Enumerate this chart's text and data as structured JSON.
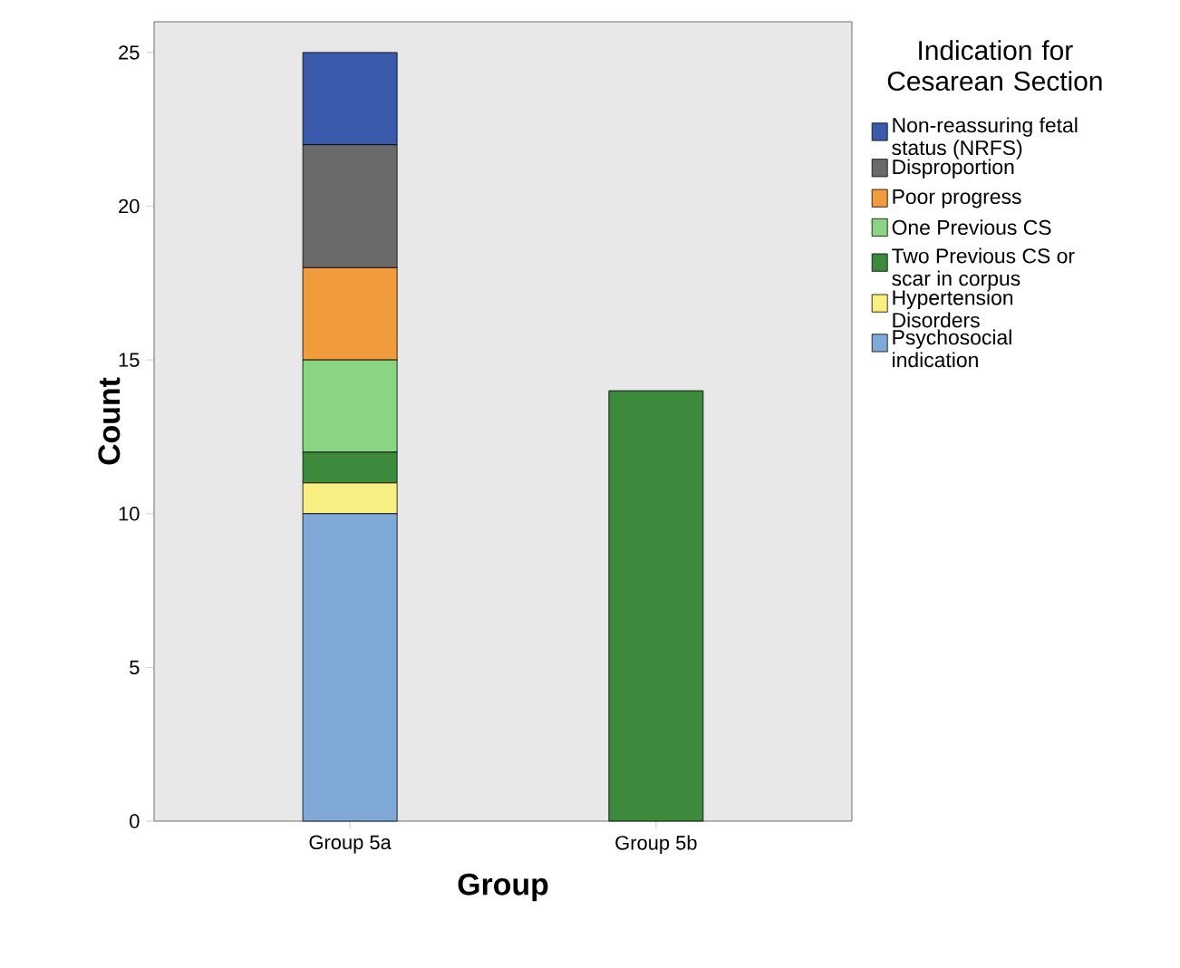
{
  "chart_data": {
    "type": "bar",
    "stacked": true,
    "xlabel": "Group",
    "ylabel": "Count",
    "legend_title": "Indication for Cesarean Section",
    "categories": [
      "Group 5a",
      "Group 5b"
    ],
    "series": [
      {
        "name": "Psychosocial indication",
        "color": "#7fa9d6",
        "values": [
          10,
          0
        ]
      },
      {
        "name": "Hypertension Disorders",
        "color": "#f7ef82",
        "values": [
          1,
          0
        ]
      },
      {
        "name": "Two Previous CS or scar in corpus",
        "color": "#3d8a3d",
        "values": [
          1,
          14
        ]
      },
      {
        "name": "One Previous CS",
        "color": "#8ad483",
        "values": [
          3,
          0
        ]
      },
      {
        "name": "Poor progress",
        "color": "#f09c3c",
        "values": [
          3,
          0
        ]
      },
      {
        "name": "Disproportion",
        "color": "#6a6a6a",
        "values": [
          4,
          0
        ]
      },
      {
        "name": "Non-reassuring fetal status (NRFS)",
        "color": "#3a5aab",
        "values": [
          3,
          0
        ]
      }
    ],
    "ylim": [
      0,
      26
    ],
    "yticks": [
      0,
      5,
      10,
      15,
      20,
      25
    ],
    "legend": "right",
    "grid": false
  }
}
